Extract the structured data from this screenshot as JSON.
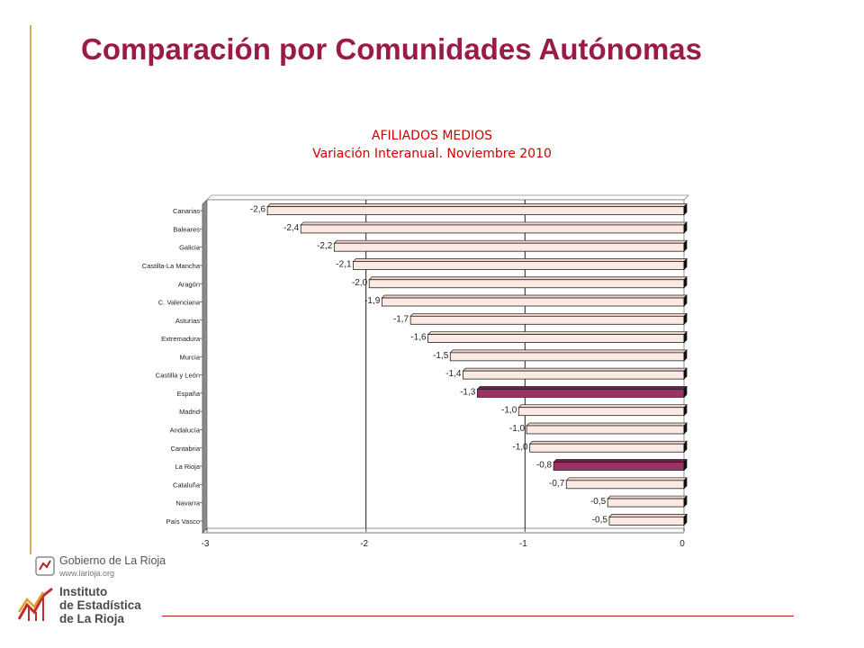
{
  "page": {
    "title": "Comparación por Comunidades Autónomas"
  },
  "footer": {
    "gov_name": "Gobierno de La Rioja",
    "gov_url": "www.larioja.org",
    "institute_line1": "Instituto",
    "institute_line2": "de Estadística",
    "institute_line3": "de La Rioja"
  },
  "colors": {
    "title": "#9b1b48",
    "chart_title": "#cc0000",
    "bar_default": "#fbe9e4",
    "bar_highlight": "#993366",
    "accent_line": "#d9a94a"
  },
  "chart_data": {
    "type": "bar",
    "orientation": "horizontal",
    "title": "AFILIADOS MEDIOS",
    "subtitle": "Variación Interanual. Noviembre 2010",
    "categories": [
      "Canarias",
      "Baleares",
      "Galicia",
      "Castilla-La Mancha",
      "Aragón",
      "C. Valenciana",
      "Asturias",
      "Extremadura",
      "Murcia",
      "Castilla y León",
      "España",
      "Madrid",
      "Andalucía",
      "Cantabria",
      "La Rioja",
      "Cataluña",
      "Navarra",
      "País Vasco"
    ],
    "values": [
      -2.62,
      -2.41,
      -2.2,
      -2.08,
      -1.98,
      -1.9,
      -1.72,
      -1.61,
      -1.47,
      -1.39,
      -1.3,
      -1.04,
      -0.99,
      -0.97,
      -0.82,
      -0.74,
      -0.48,
      -0.47
    ],
    "value_labels": [
      "-2,6",
      "-2,4",
      "-2,2",
      "-2,1",
      "-2,0",
      "-1,9",
      "-1,7",
      "-1,6",
      "-1,5",
      "-1,4",
      "-1,3",
      "-1,0",
      "-1,0",
      "-1,0",
      "-0,8",
      "-0,7",
      "-0,5",
      "-0,5"
    ],
    "highlight": [
      "España",
      "La Rioja"
    ],
    "xlim": [
      -3,
      0
    ],
    "xticks": [
      -3,
      -2,
      -1,
      0
    ],
    "xtick_labels": [
      "-3",
      "-2",
      "-1",
      "0"
    ],
    "grid": true,
    "legend": "none"
  }
}
